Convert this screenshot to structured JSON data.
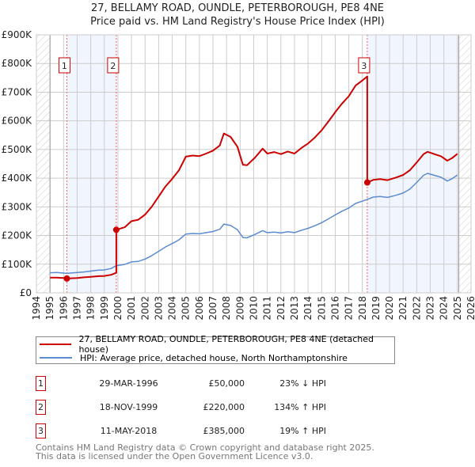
{
  "chart_data": {
    "type": "line",
    "title": "27, BELLAMY ROAD, OUNDLE, PETERBOROUGH, PE8 4NE",
    "subtitle": "Price paid vs. HM Land Registry's House Price Index (HPI)",
    "xlim": [
      1994,
      2026
    ],
    "ylim": [
      0,
      900000
    ],
    "x_ticks": [
      1994,
      1995,
      1996,
      1997,
      1998,
      1999,
      2000,
      2001,
      2002,
      2003,
      2004,
      2005,
      2006,
      2007,
      2008,
      2009,
      2010,
      2011,
      2012,
      2013,
      2014,
      2015,
      2016,
      2017,
      2018,
      2019,
      2020,
      2021,
      2022,
      2023,
      2024,
      2025,
      2026
    ],
    "y_ticks": [
      {
        "value": 0,
        "label": "£0"
      },
      {
        "value": 100000,
        "label": "£100K"
      },
      {
        "value": 200000,
        "label": "£200K"
      },
      {
        "value": 300000,
        "label": "£300K"
      },
      {
        "value": 400000,
        "label": "£400K"
      },
      {
        "value": 500000,
        "label": "£500K"
      },
      {
        "value": 600000,
        "label": "£600K"
      },
      {
        "value": 700000,
        "label": "£700K"
      },
      {
        "value": 800000,
        "label": "£800K"
      },
      {
        "value": 900000,
        "label": "£900K"
      }
    ],
    "grid": true,
    "data_range": [
      1995,
      2025.1
    ],
    "shaded_periods": [
      [
        1996.24,
        1999.88
      ],
      [
        2018.36,
        2025.1
      ]
    ],
    "series": [
      {
        "name": "27, BELLAMY ROAD, OUNDLE, PETERBOROUGH, PE8 4NE (detached house)",
        "color": "#cc0000",
        "points": [
          [
            1995.0,
            53000
          ],
          [
            1995.5,
            53000
          ],
          [
            1996.0,
            52000
          ],
          [
            1996.24,
            50000
          ],
          [
            1997.0,
            52000
          ],
          [
            1997.5,
            54000
          ],
          [
            1998.0,
            56000
          ],
          [
            1998.5,
            58000
          ],
          [
            1999.0,
            59000
          ],
          [
            1999.5,
            63000
          ],
          [
            1999.88,
            70000
          ],
          [
            1999.88,
            220000
          ],
          [
            2000.5,
            229000
          ],
          [
            2001.0,
            250000
          ],
          [
            2001.5,
            255000
          ],
          [
            2002.0,
            273000
          ],
          [
            2002.5,
            301000
          ],
          [
            2003.0,
            336000
          ],
          [
            2003.5,
            371000
          ],
          [
            2004.0,
            398000
          ],
          [
            2004.5,
            428000
          ],
          [
            2005.0,
            475000
          ],
          [
            2005.5,
            479000
          ],
          [
            2006.0,
            477000
          ],
          [
            2006.5,
            486000
          ],
          [
            2007.0,
            496000
          ],
          [
            2007.5,
            514000
          ],
          [
            2007.8,
            556000
          ],
          [
            2008.3,
            544000
          ],
          [
            2008.8,
            510000
          ],
          [
            2009.2,
            447000
          ],
          [
            2009.5,
            445000
          ],
          [
            2010.1,
            472000
          ],
          [
            2010.65,
            503000
          ],
          [
            2011.0,
            486000
          ],
          [
            2011.5,
            491000
          ],
          [
            2012.0,
            484000
          ],
          [
            2012.5,
            493000
          ],
          [
            2013.0,
            486000
          ],
          [
            2013.5,
            505000
          ],
          [
            2014.0,
            521000
          ],
          [
            2014.5,
            542000
          ],
          [
            2015.0,
            567000
          ],
          [
            2015.5,
            598000
          ],
          [
            2016.0,
            630000
          ],
          [
            2016.5,
            660000
          ],
          [
            2017.0,
            686000
          ],
          [
            2017.5,
            723000
          ],
          [
            2018.0,
            741000
          ],
          [
            2018.36,
            755000
          ],
          [
            2018.36,
            385000
          ],
          [
            2018.8,
            394000
          ],
          [
            2019.3,
            397000
          ],
          [
            2019.85,
            393000
          ],
          [
            2020.45,
            402000
          ],
          [
            2021.0,
            411000
          ],
          [
            2021.5,
            428000
          ],
          [
            2022.0,
            455000
          ],
          [
            2022.5,
            484000
          ],
          [
            2022.8,
            492000
          ],
          [
            2023.3,
            484000
          ],
          [
            2023.8,
            476000
          ],
          [
            2024.25,
            461000
          ],
          [
            2024.6,
            470000
          ],
          [
            2025.0,
            485000
          ]
        ]
      },
      {
        "name": "HPI: Average price, detached house, North Northamptonshire",
        "color": "#5b8bd0",
        "points": [
          [
            1995.0,
            70000
          ],
          [
            1995.5,
            71000
          ],
          [
            1996.0,
            69000
          ],
          [
            1996.24,
            68000
          ],
          [
            1997.0,
            71000
          ],
          [
            1997.5,
            73000
          ],
          [
            1998.0,
            76000
          ],
          [
            1998.5,
            79000
          ],
          [
            1999.0,
            80000
          ],
          [
            1999.5,
            85000
          ],
          [
            1999.88,
            95000
          ],
          [
            2000.5,
            99000
          ],
          [
            2001.0,
            108000
          ],
          [
            2001.5,
            110000
          ],
          [
            2002.0,
            118000
          ],
          [
            2002.5,
            130000
          ],
          [
            2003.0,
            145000
          ],
          [
            2003.5,
            160000
          ],
          [
            2004.0,
            172000
          ],
          [
            2004.5,
            185000
          ],
          [
            2005.0,
            205000
          ],
          [
            2005.5,
            207000
          ],
          [
            2006.0,
            206000
          ],
          [
            2006.5,
            210000
          ],
          [
            2007.0,
            214000
          ],
          [
            2007.5,
            222000
          ],
          [
            2007.8,
            240000
          ],
          [
            2008.3,
            235000
          ],
          [
            2008.8,
            220000
          ],
          [
            2009.2,
            193000
          ],
          [
            2009.5,
            192000
          ],
          [
            2010.1,
            204000
          ],
          [
            2010.65,
            217000
          ],
          [
            2011.0,
            210000
          ],
          [
            2011.5,
            212000
          ],
          [
            2012.0,
            209000
          ],
          [
            2012.5,
            213000
          ],
          [
            2013.0,
            210000
          ],
          [
            2013.5,
            218000
          ],
          [
            2014.0,
            225000
          ],
          [
            2014.5,
            234000
          ],
          [
            2015.0,
            245000
          ],
          [
            2015.5,
            258000
          ],
          [
            2016.0,
            272000
          ],
          [
            2016.5,
            285000
          ],
          [
            2017.0,
            296000
          ],
          [
            2017.5,
            312000
          ],
          [
            2018.0,
            320000
          ],
          [
            2018.36,
            326000
          ],
          [
            2018.8,
            334000
          ],
          [
            2019.3,
            336000
          ],
          [
            2019.85,
            333000
          ],
          [
            2020.45,
            340000
          ],
          [
            2021.0,
            348000
          ],
          [
            2021.5,
            362000
          ],
          [
            2022.0,
            385000
          ],
          [
            2022.5,
            410000
          ],
          [
            2022.8,
            417000
          ],
          [
            2023.3,
            410000
          ],
          [
            2023.8,
            403000
          ],
          [
            2024.25,
            390000
          ],
          [
            2024.6,
            398000
          ],
          [
            2025.0,
            411000
          ]
        ]
      }
    ],
    "sales": [
      {
        "label": "1",
        "x": 1996.24,
        "value": 50000,
        "date": "29-MAR-1996",
        "price": "£50,000",
        "hpi": "23% ↓ HPI"
      },
      {
        "label": "2",
        "x": 1999.88,
        "value": 220000,
        "date": "18-NOV-1999",
        "price": "£220,000",
        "hpi": "134% ↑ HPI"
      },
      {
        "label": "3",
        "x": 2018.36,
        "value": 385000,
        "date": "11-MAY-2018",
        "price": "£385,000",
        "hpi": "19% ↑ HPI"
      }
    ],
    "legend_placement": "below"
  },
  "footer": {
    "line1": "Contains HM Land Registry data © Crown copyright and database right 2025.",
    "line2": "This data is licensed under the Open Government Licence v3.0."
  }
}
